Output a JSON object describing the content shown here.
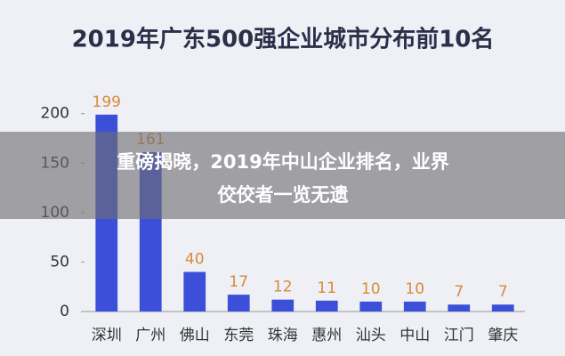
{
  "chart_data": {
    "type": "bar",
    "title": "2019年广东500强企业城市分布前10名",
    "categories": [
      "深圳",
      "广州",
      "佛山",
      "东莞",
      "珠海",
      "惠州",
      "汕头",
      "中山",
      "江门",
      "肇庆"
    ],
    "values": [
      199,
      161,
      40,
      17,
      12,
      11,
      10,
      10,
      7,
      7
    ],
    "color": "#3b4fd8",
    "label_color": "#d98a3a",
    "ylim": [
      0,
      215
    ],
    "yticks": [
      0,
      50,
      100,
      150,
      200
    ]
  },
  "overlay": {
    "lines": [
      "重磅揭晓，2019年中山企业排名，业界",
      "佼佼者一览无遗"
    ]
  }
}
